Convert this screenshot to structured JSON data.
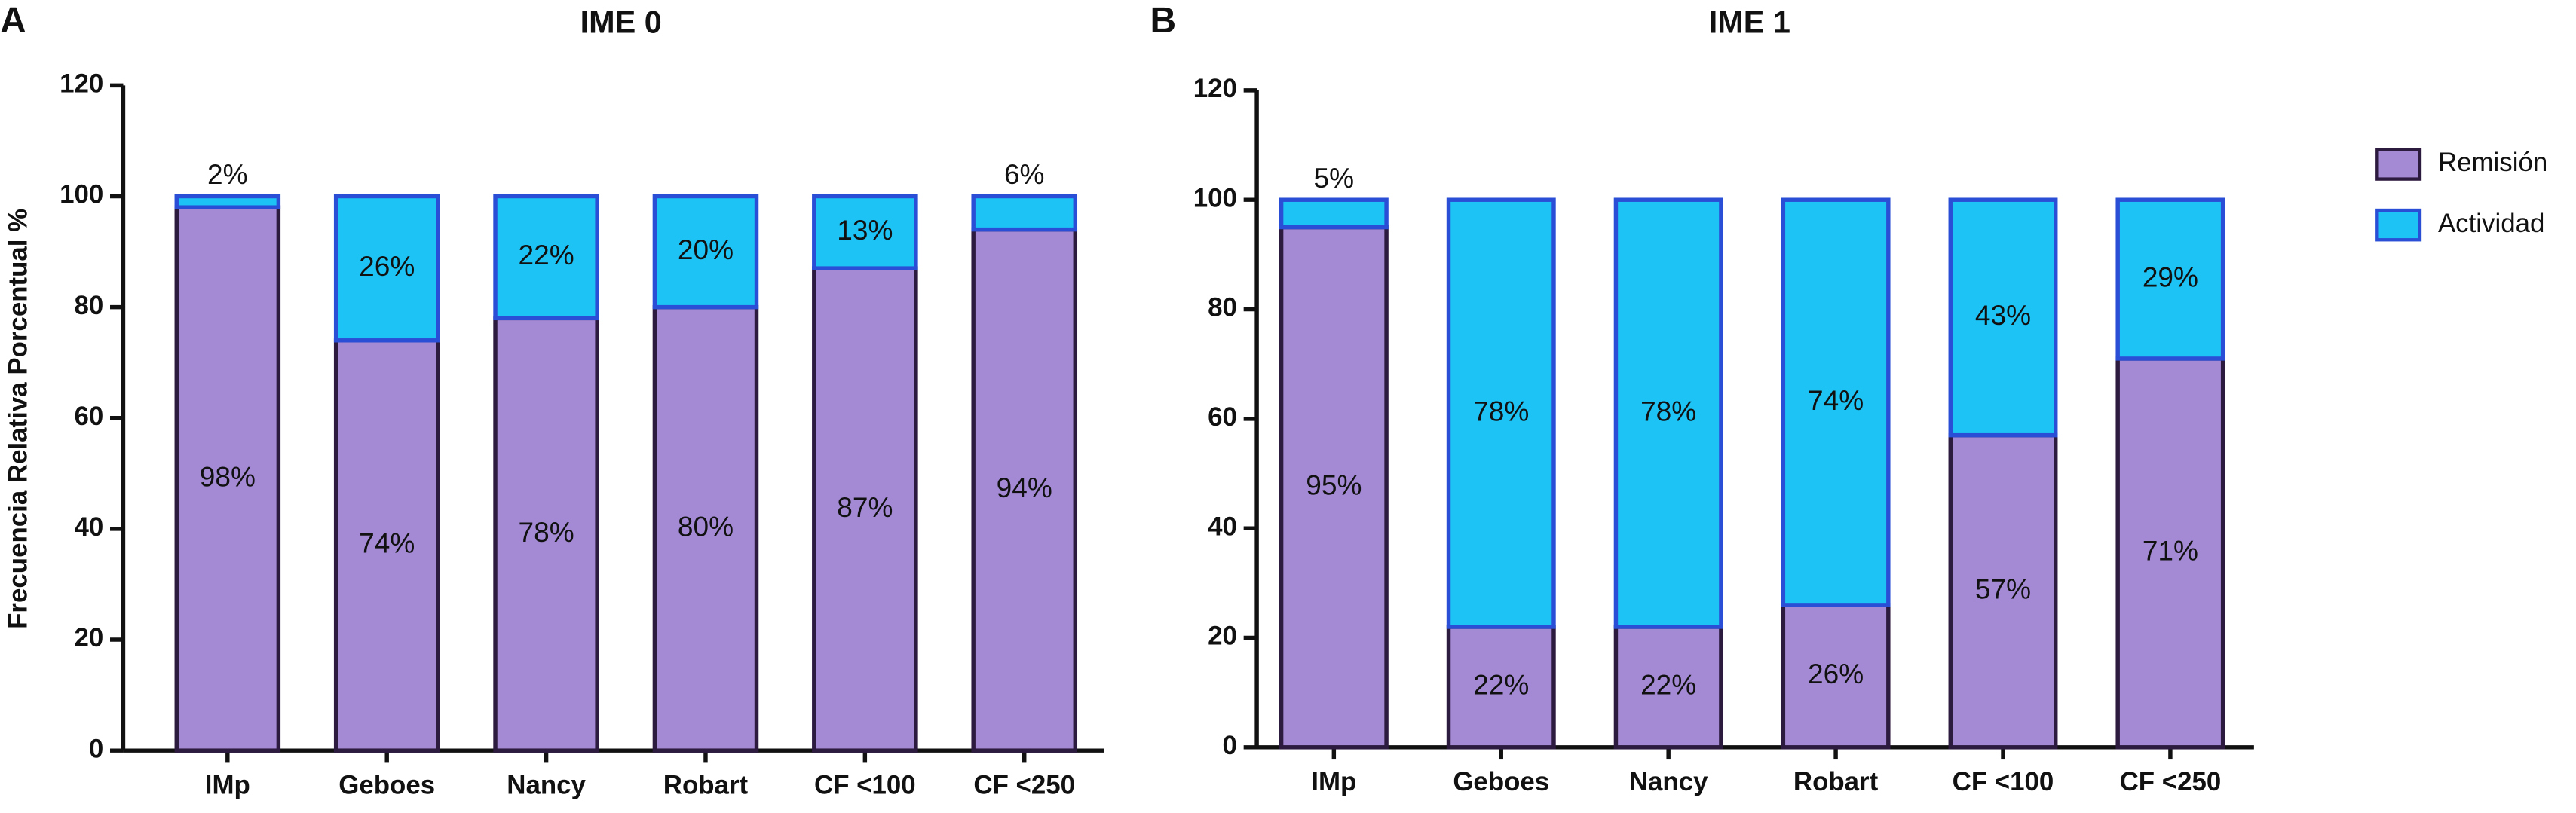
{
  "chart_data": [
    {
      "type": "stacked-bar",
      "panel": "A",
      "title": "IME 0",
      "ylabel": "Frecuencia Relativa Porcentual %",
      "categories": [
        "IMp",
        "Geboes",
        "Nancy",
        "Robart",
        "CF <100",
        "CF <250"
      ],
      "series": [
        {
          "color": "#a48ad4",
          "values": [
            98,
            74,
            78,
            80,
            87,
            94
          ],
          "value_labels": [
            "98%",
            "74%",
            "78%",
            "80%",
            "87%",
            "94%"
          ]
        },
        {
          "color": "#1ec3f5",
          "values": [
            2,
            26,
            22,
            20,
            13,
            6
          ],
          "value_labels": [
            "2%",
            "26%",
            "22%",
            "20%",
            "13%",
            "6%"
          ]
        }
      ],
      "ylim": [
        0,
        120
      ],
      "yticks": [
        0,
        20,
        40,
        60,
        80,
        100,
        120
      ]
    },
    {
      "type": "stacked-bar",
      "panel": "B",
      "title": "IME 1",
      "categories": [
        "IMp",
        "Geboes",
        "Nancy",
        "Robart",
        "CF <100",
        "CF <250"
      ],
      "series": [
        {
          "name": "Remisión",
          "color": "#a48ad4",
          "values": [
            95,
            22,
            22,
            26,
            57,
            71
          ],
          "value_labels": [
            "95%",
            "22%",
            "22%",
            "26%",
            "57%",
            "71%"
          ]
        },
        {
          "name": "Actividad",
          "color": "#1ec3f5",
          "values": [
            5,
            78,
            78,
            74,
            43,
            29
          ],
          "value_labels": [
            "5%",
            "78%",
            "78%",
            "74%",
            "43%",
            "29%"
          ]
        }
      ],
      "ylim": [
        0,
        120
      ],
      "yticks": [
        0,
        20,
        40,
        60,
        80,
        100,
        120
      ]
    }
  ]
}
